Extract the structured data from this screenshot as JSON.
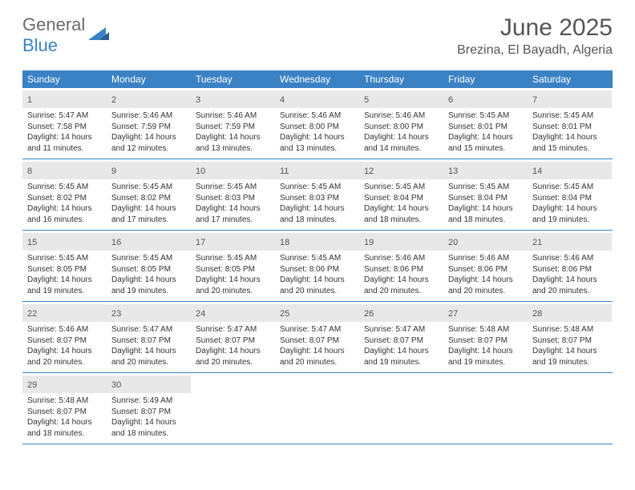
{
  "logo": {
    "text1": "General",
    "text2": "Blue"
  },
  "title": "June 2025",
  "location": "Brezina, El Bayadh, Algeria",
  "colors": {
    "header_blue": "#3b82c4",
    "day_header_bg": "#e8e8e8",
    "text": "#333333",
    "title_text": "#555555",
    "logo_gray": "#6b6b6b",
    "logo_blue": "#3b82c4"
  },
  "weekdays": [
    "Sunday",
    "Monday",
    "Tuesday",
    "Wednesday",
    "Thursday",
    "Friday",
    "Saturday"
  ],
  "weeks": [
    [
      {
        "n": "1",
        "sunrise": "Sunrise: 5:47 AM",
        "sunset": "Sunset: 7:58 PM",
        "day1": "Daylight: 14 hours",
        "day2": "and 11 minutes."
      },
      {
        "n": "2",
        "sunrise": "Sunrise: 5:46 AM",
        "sunset": "Sunset: 7:59 PM",
        "day1": "Daylight: 14 hours",
        "day2": "and 12 minutes."
      },
      {
        "n": "3",
        "sunrise": "Sunrise: 5:46 AM",
        "sunset": "Sunset: 7:59 PM",
        "day1": "Daylight: 14 hours",
        "day2": "and 13 minutes."
      },
      {
        "n": "4",
        "sunrise": "Sunrise: 5:46 AM",
        "sunset": "Sunset: 8:00 PM",
        "day1": "Daylight: 14 hours",
        "day2": "and 13 minutes."
      },
      {
        "n": "5",
        "sunrise": "Sunrise: 5:46 AM",
        "sunset": "Sunset: 8:00 PM",
        "day1": "Daylight: 14 hours",
        "day2": "and 14 minutes."
      },
      {
        "n": "6",
        "sunrise": "Sunrise: 5:45 AM",
        "sunset": "Sunset: 8:01 PM",
        "day1": "Daylight: 14 hours",
        "day2": "and 15 minutes."
      },
      {
        "n": "7",
        "sunrise": "Sunrise: 5:45 AM",
        "sunset": "Sunset: 8:01 PM",
        "day1": "Daylight: 14 hours",
        "day2": "and 15 minutes."
      }
    ],
    [
      {
        "n": "8",
        "sunrise": "Sunrise: 5:45 AM",
        "sunset": "Sunset: 8:02 PM",
        "day1": "Daylight: 14 hours",
        "day2": "and 16 minutes."
      },
      {
        "n": "9",
        "sunrise": "Sunrise: 5:45 AM",
        "sunset": "Sunset: 8:02 PM",
        "day1": "Daylight: 14 hours",
        "day2": "and 17 minutes."
      },
      {
        "n": "10",
        "sunrise": "Sunrise: 5:45 AM",
        "sunset": "Sunset: 8:03 PM",
        "day1": "Daylight: 14 hours",
        "day2": "and 17 minutes."
      },
      {
        "n": "11",
        "sunrise": "Sunrise: 5:45 AM",
        "sunset": "Sunset: 8:03 PM",
        "day1": "Daylight: 14 hours",
        "day2": "and 18 minutes."
      },
      {
        "n": "12",
        "sunrise": "Sunrise: 5:45 AM",
        "sunset": "Sunset: 8:04 PM",
        "day1": "Daylight: 14 hours",
        "day2": "and 18 minutes."
      },
      {
        "n": "13",
        "sunrise": "Sunrise: 5:45 AM",
        "sunset": "Sunset: 8:04 PM",
        "day1": "Daylight: 14 hours",
        "day2": "and 18 minutes."
      },
      {
        "n": "14",
        "sunrise": "Sunrise: 5:45 AM",
        "sunset": "Sunset: 8:04 PM",
        "day1": "Daylight: 14 hours",
        "day2": "and 19 minutes."
      }
    ],
    [
      {
        "n": "15",
        "sunrise": "Sunrise: 5:45 AM",
        "sunset": "Sunset: 8:05 PM",
        "day1": "Daylight: 14 hours",
        "day2": "and 19 minutes."
      },
      {
        "n": "16",
        "sunrise": "Sunrise: 5:45 AM",
        "sunset": "Sunset: 8:05 PM",
        "day1": "Daylight: 14 hours",
        "day2": "and 19 minutes."
      },
      {
        "n": "17",
        "sunrise": "Sunrise: 5:45 AM",
        "sunset": "Sunset: 8:05 PM",
        "day1": "Daylight: 14 hours",
        "day2": "and 20 minutes."
      },
      {
        "n": "18",
        "sunrise": "Sunrise: 5:45 AM",
        "sunset": "Sunset: 8:06 PM",
        "day1": "Daylight: 14 hours",
        "day2": "and 20 minutes."
      },
      {
        "n": "19",
        "sunrise": "Sunrise: 5:46 AM",
        "sunset": "Sunset: 8:06 PM",
        "day1": "Daylight: 14 hours",
        "day2": "and 20 minutes."
      },
      {
        "n": "20",
        "sunrise": "Sunrise: 5:46 AM",
        "sunset": "Sunset: 8:06 PM",
        "day1": "Daylight: 14 hours",
        "day2": "and 20 minutes."
      },
      {
        "n": "21",
        "sunrise": "Sunrise: 5:46 AM",
        "sunset": "Sunset: 8:06 PM",
        "day1": "Daylight: 14 hours",
        "day2": "and 20 minutes."
      }
    ],
    [
      {
        "n": "22",
        "sunrise": "Sunrise: 5:46 AM",
        "sunset": "Sunset: 8:07 PM",
        "day1": "Daylight: 14 hours",
        "day2": "and 20 minutes."
      },
      {
        "n": "23",
        "sunrise": "Sunrise: 5:47 AM",
        "sunset": "Sunset: 8:07 PM",
        "day1": "Daylight: 14 hours",
        "day2": "and 20 minutes."
      },
      {
        "n": "24",
        "sunrise": "Sunrise: 5:47 AM",
        "sunset": "Sunset: 8:07 PM",
        "day1": "Daylight: 14 hours",
        "day2": "and 20 minutes."
      },
      {
        "n": "25",
        "sunrise": "Sunrise: 5:47 AM",
        "sunset": "Sunset: 8:07 PM",
        "day1": "Daylight: 14 hours",
        "day2": "and 20 minutes."
      },
      {
        "n": "26",
        "sunrise": "Sunrise: 5:47 AM",
        "sunset": "Sunset: 8:07 PM",
        "day1": "Daylight: 14 hours",
        "day2": "and 19 minutes."
      },
      {
        "n": "27",
        "sunrise": "Sunrise: 5:48 AM",
        "sunset": "Sunset: 8:07 PM",
        "day1": "Daylight: 14 hours",
        "day2": "and 19 minutes."
      },
      {
        "n": "28",
        "sunrise": "Sunrise: 5:48 AM",
        "sunset": "Sunset: 8:07 PM",
        "day1": "Daylight: 14 hours",
        "day2": "and 19 minutes."
      }
    ],
    [
      {
        "n": "29",
        "sunrise": "Sunrise: 5:48 AM",
        "sunset": "Sunset: 8:07 PM",
        "day1": "Daylight: 14 hours",
        "day2": "and 18 minutes."
      },
      {
        "n": "30",
        "sunrise": "Sunrise: 5:49 AM",
        "sunset": "Sunset: 8:07 PM",
        "day1": "Daylight: 14 hours",
        "day2": "and 18 minutes."
      },
      null,
      null,
      null,
      null,
      null
    ]
  ]
}
